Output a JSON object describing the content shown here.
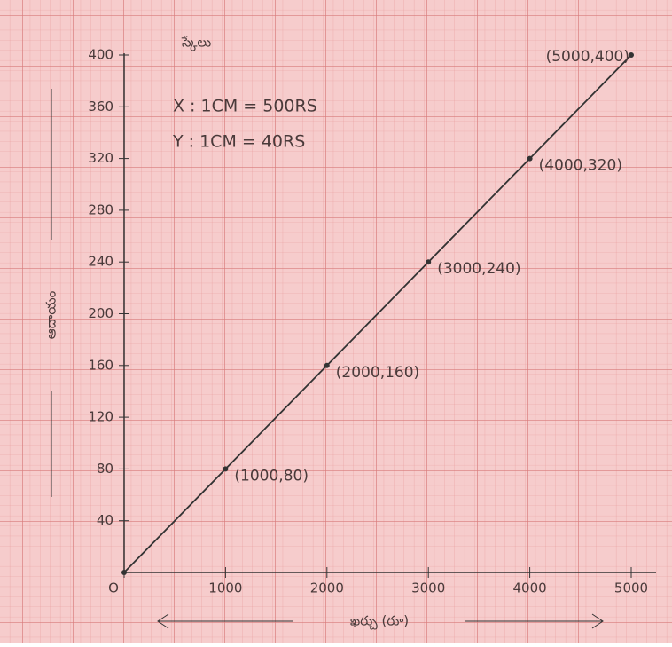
{
  "chart_data": {
    "type": "line",
    "scale_title": "స్కేలు",
    "scale_notes": [
      "X : 1CM = 500RS",
      "Y : 1CM = 40RS"
    ],
    "x_label": "ఖర్చు (రూ)",
    "y_label": "ఆదాయం",
    "x": [
      0,
      1000,
      2000,
      3000,
      4000,
      5000
    ],
    "series": [
      {
        "color": "#333333",
        "values": [
          0,
          80,
          160,
          240,
          320,
          400
        ],
        "value_labels": [
          null,
          "(1000,80)",
          "(2000,160)",
          "(3000,240)",
          "(4000,320)",
          "(5000,400)"
        ]
      }
    ],
    "xlim": [
      0,
      5000
    ],
    "ylim": [
      0,
      400
    ],
    "xticks": [
      {
        "value": 0,
        "label": "O"
      },
      1000,
      2000,
      3000,
      4000,
      5000
    ],
    "yticks": [
      40,
      80,
      120,
      160,
      200,
      240,
      280,
      320,
      360,
      400
    ]
  }
}
